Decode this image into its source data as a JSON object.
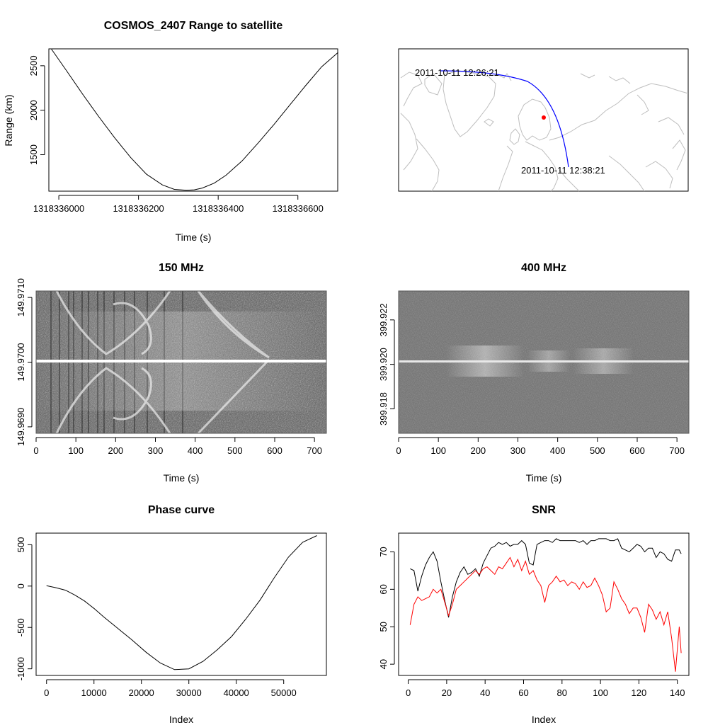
{
  "chart_data": [
    {
      "type": "line",
      "title": "COSMOS_2407 Range to satellite",
      "xlabel": "Time (s)",
      "ylabel": "Range (km)",
      "xlim": [
        1318335975,
        1318336700
      ],
      "ylim": [
        1090,
        2690
      ],
      "xticks": [
        1318336000,
        1318336200,
        1318336400,
        1318336600
      ],
      "yticks": [
        1500,
        2000,
        2500
      ],
      "xtick_labels": [
        "1318336000",
        "1318336200",
        "1318336400",
        "1318336600"
      ],
      "ytick_labels": [
        "1500",
        "2000",
        "2500"
      ],
      "series": [
        {
          "color": "#000000",
          "x": [
            1318335981,
            1318336020,
            1318336060,
            1318336100,
            1318336140,
            1318336180,
            1318336220,
            1318336260,
            1318336290,
            1318336320,
            1318336340,
            1318336360,
            1318336390,
            1318336420,
            1318336460,
            1318336500,
            1318336540,
            1318336580,
            1318336620,
            1318336660,
            1318336701
          ],
          "y": [
            2690,
            2440,
            2180,
            1930,
            1690,
            1470,
            1280,
            1160,
            1110,
            1100,
            1105,
            1125,
            1180,
            1270,
            1430,
            1630,
            1840,
            2060,
            2280,
            2490,
            2650
          ]
        }
      ]
    },
    {
      "type": "map",
      "labels": [
        "2011-10-11 12:26:21",
        "2011-10-11 12:38:21"
      ],
      "track_color": "#0000ff",
      "station_color": "#ff0000",
      "coastline_color": "#bebebe"
    },
    {
      "type": "heatmap",
      "title": "150 MHz",
      "xlabel": "Time (s)",
      "ylabel": "",
      "xlim": [
        0,
        730
      ],
      "ylim": [
        149.9689,
        149.9711
      ],
      "xticks": [
        0,
        100,
        200,
        300,
        400,
        500,
        600,
        700
      ],
      "yticks": [
        149.969,
        149.97,
        149.971
      ],
      "xtick_labels": [
        "0",
        "100",
        "200",
        "300",
        "400",
        "500",
        "600",
        "700"
      ],
      "ytick_labels": [
        "149.9690",
        "149.9700",
        "149.9710"
      ],
      "center_line": 149.97
    },
    {
      "type": "heatmap",
      "title": "400 MHz",
      "xlabel": "Time (s)",
      "ylabel": "",
      "xlim": [
        0,
        730
      ],
      "ylim": [
        399.9169,
        399.9233
      ],
      "xticks": [
        0,
        100,
        200,
        300,
        400,
        500,
        600,
        700
      ],
      "yticks": [
        399.918,
        399.92,
        399.922
      ],
      "xtick_labels": [
        "0",
        "100",
        "200",
        "300",
        "400",
        "500",
        "600",
        "700"
      ],
      "ytick_labels": [
        "399.918",
        "399.920",
        "399.922"
      ],
      "center_line": 399.92
    },
    {
      "type": "line",
      "title": "Phase curve",
      "xlabel": "Index",
      "ylabel": "",
      "xlim": [
        -2200,
        59000
      ],
      "ylim": [
        -1080,
        640
      ],
      "xticks": [
        0,
        10000,
        20000,
        30000,
        40000,
        50000
      ],
      "yticks": [
        -1000,
        -500,
        0,
        500
      ],
      "xtick_labels": [
        "0",
        "10000",
        "20000",
        "30000",
        "40000",
        "50000"
      ],
      "ytick_labels": [
        "-1000",
        "-500",
        "0",
        "500"
      ],
      "series": [
        {
          "color": "#000000",
          "x": [
            0,
            2000,
            4000,
            6000,
            8000,
            10000,
            12000,
            15000,
            18000,
            21000,
            24000,
            27000,
            30000,
            33000,
            36000,
            39000,
            42000,
            45000,
            48000,
            51000,
            54000,
            57000
          ],
          "y": [
            5,
            -20,
            -50,
            -110,
            -180,
            -270,
            -370,
            -510,
            -650,
            -800,
            -930,
            -1010,
            -1000,
            -910,
            -770,
            -610,
            -400,
            -170,
            100,
            350,
            530,
            610
          ]
        }
      ]
    },
    {
      "type": "line",
      "title": "SNR",
      "xlabel": "Index",
      "ylabel": "",
      "xlim": [
        -5,
        146
      ],
      "ylim": [
        37,
        75
      ],
      "xticks": [
        0,
        20,
        40,
        60,
        80,
        100,
        120,
        140
      ],
      "yticks": [
        40,
        50,
        60,
        70
      ],
      "xtick_labels": [
        "0",
        "20",
        "40",
        "60",
        "80",
        "100",
        "120",
        "140"
      ],
      "ytick_labels": [
        "40",
        "50",
        "60",
        "70"
      ],
      "series": [
        {
          "color": "#000000",
          "x": [
            1,
            3,
            5,
            7,
            9,
            11,
            13,
            15,
            17,
            19,
            21,
            23,
            25,
            27,
            29,
            31,
            33,
            35,
            37,
            39,
            41,
            43,
            45,
            47,
            49,
            51,
            53,
            55,
            57,
            59,
            61,
            63,
            65,
            67,
            69,
            71,
            73,
            75,
            77,
            79,
            81,
            83,
            85,
            87,
            89,
            91,
            93,
            95,
            97,
            99,
            101,
            103,
            105,
            107,
            109,
            111,
            113,
            115,
            117,
            119,
            121,
            123,
            125,
            127,
            129,
            131,
            133,
            135,
            137,
            139,
            141,
            142
          ],
          "y": [
            65.5,
            65,
            59.5,
            63.5,
            66.5,
            68.5,
            70,
            67.5,
            62,
            57,
            52.5,
            58,
            62,
            64.5,
            66,
            64,
            64.5,
            65.5,
            63.5,
            67,
            69,
            71,
            71.5,
            72.5,
            72,
            72.5,
            71.5,
            72,
            72,
            73,
            72,
            67,
            66.5,
            72,
            72.5,
            73,
            73,
            72.5,
            73.5,
            73,
            73,
            73,
            73,
            73,
            72.5,
            73,
            72,
            73,
            73,
            73.5,
            73.5,
            73.5,
            73,
            73,
            73.5,
            71,
            70.5,
            70,
            71,
            72,
            71.5,
            70,
            71,
            71,
            68.5,
            70,
            69.5,
            68,
            67.5,
            70.5,
            70.5,
            69.5
          ]
        },
        {
          "color": "#ff0000",
          "x": [
            1,
            3,
            5,
            7,
            9,
            11,
            13,
            15,
            17,
            19,
            21,
            23,
            25,
            27,
            29,
            31,
            33,
            35,
            37,
            39,
            41,
            43,
            45,
            47,
            49,
            51,
            53,
            55,
            57,
            59,
            61,
            63,
            65,
            67,
            69,
            71,
            73,
            75,
            77,
            79,
            81,
            83,
            85,
            87,
            89,
            91,
            93,
            95,
            97,
            99,
            101,
            103,
            105,
            107,
            109,
            111,
            113,
            115,
            117,
            119,
            121,
            123,
            125,
            127,
            129,
            131,
            133,
            135,
            137,
            139,
            141,
            142
          ],
          "y": [
            50.5,
            56,
            58,
            57,
            57.5,
            58,
            60,
            59,
            60,
            56.5,
            53,
            56,
            60,
            61,
            62,
            63,
            64,
            65,
            64,
            65.5,
            66,
            65,
            64,
            66,
            65.5,
            67,
            68.5,
            66,
            68,
            65,
            67.5,
            64,
            65,
            62.5,
            61,
            56.5,
            61,
            62,
            63.5,
            62,
            62.5,
            61,
            62,
            61.5,
            60,
            62,
            60.5,
            61,
            63,
            61,
            58.5,
            54,
            55,
            62,
            60,
            57.5,
            56,
            53.5,
            55,
            55,
            52.5,
            48.5,
            56,
            54.5,
            52,
            54,
            50.5,
            54,
            47,
            38,
            50,
            43
          ]
        }
      ]
    }
  ]
}
